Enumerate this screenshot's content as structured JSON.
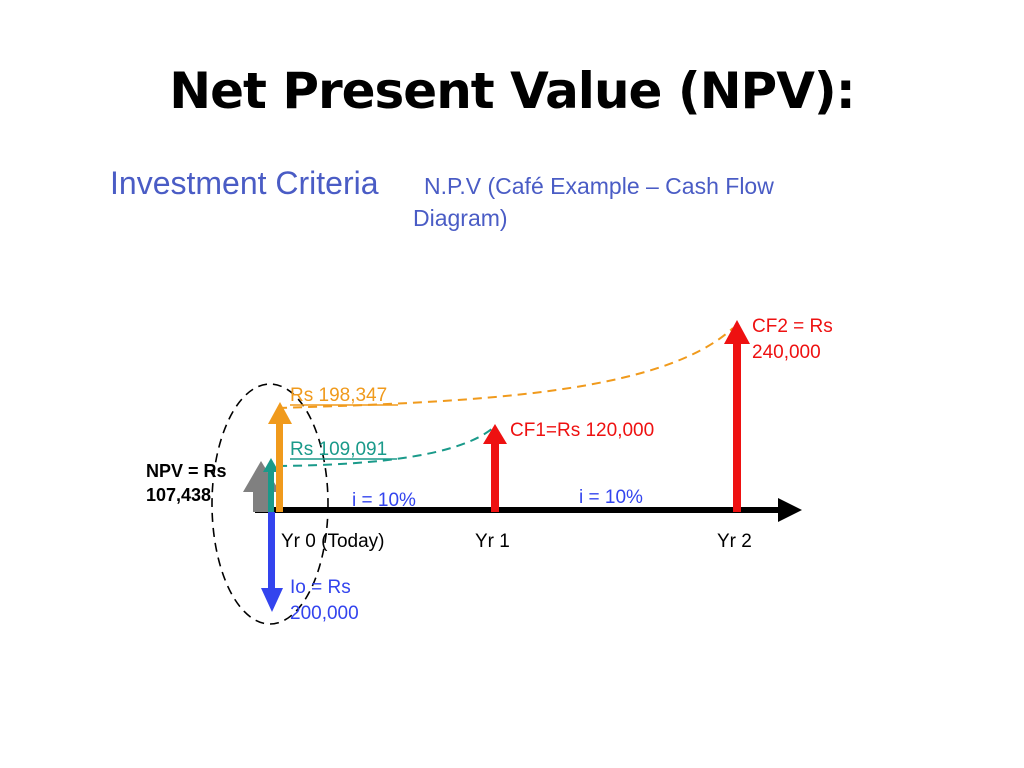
{
  "slide": {
    "title": "Net Present Value (NPV):"
  },
  "diagram": {
    "heading": "Investment Criteria",
    "heading_rest_line1": "N.P.V (Café Example – Cash Flow",
    "heading_rest_line2": "Diagram)",
    "axis": {
      "yr0_label": "Yr 0 (Today)",
      "yr1_label": "Yr 1",
      "yr2_label": "Yr 2",
      "rate_label_1": "i = 10%",
      "rate_label_2": "i = 10%"
    },
    "flows": {
      "investment_line1": "Io = Rs",
      "investment_line2": "200,000",
      "cf1_label": "CF1=Rs 120,000",
      "cf2_line1": "CF2 = Rs",
      "cf2_line2": "240,000",
      "pv_cf2_label": "Rs 198,347",
      "pv_cf1_label": "Rs 109,091",
      "npv_line1": "NPV = Rs",
      "npv_line2": "107,438"
    },
    "colors": {
      "heading": "#4a5cc5",
      "investment": "#3344ee",
      "cash_flow": "#ee1111",
      "pv_cf2": "#f09a1c",
      "pv_cf1": "#1a9a8a",
      "npv": "#808080",
      "axis": "#000000"
    }
  }
}
